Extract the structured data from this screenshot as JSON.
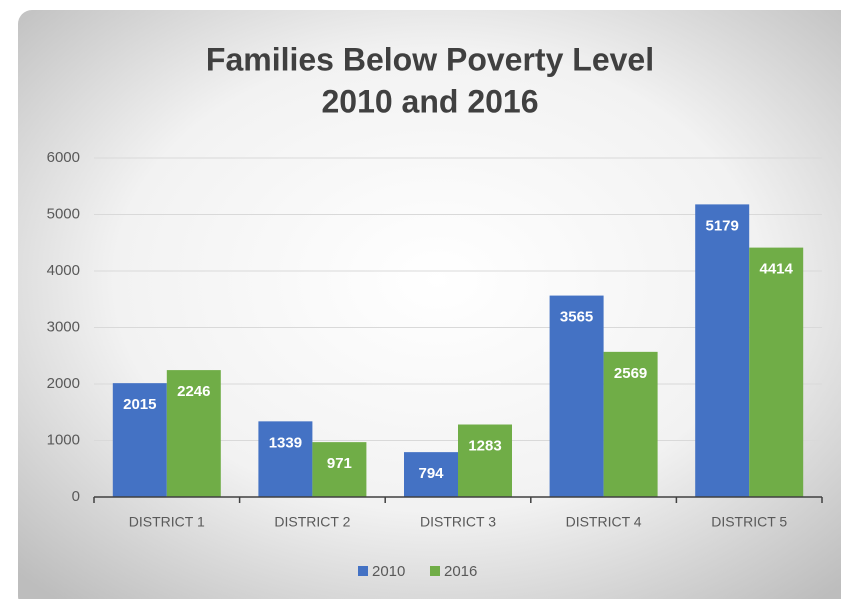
{
  "chart_data": {
    "type": "bar",
    "title": "Families Below Poverty Level",
    "subtitle": "2010 and 2016",
    "categories": [
      "DISTRICT 1",
      "DISTRICT 2",
      "DISTRICT 3",
      "DISTRICT 4",
      "DISTRICT 5"
    ],
    "series": [
      {
        "name": "2010",
        "color": "#4472c4",
        "values": [
          2015,
          1339,
          794,
          3565,
          5179
        ]
      },
      {
        "name": "2016",
        "color": "#70ad47",
        "values": [
          2246,
          971,
          1283,
          2569,
          4414
        ]
      }
    ],
    "ylim": [
      0,
      6000
    ],
    "yticks": [
      0,
      1000,
      2000,
      3000,
      4000,
      5000,
      6000
    ],
    "grid": true,
    "legend": "bottom"
  }
}
